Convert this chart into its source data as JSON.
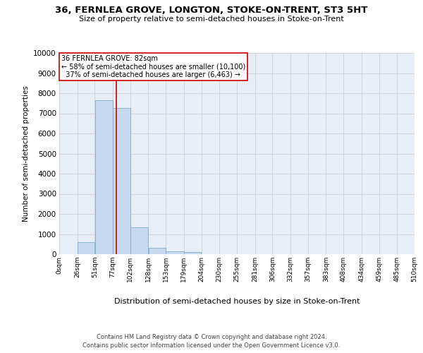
{
  "title": "36, FERNLEA GROVE, LONGTON, STOKE-ON-TRENT, ST3 5HT",
  "subtitle": "Size of property relative to semi-detached houses in Stoke-on-Trent",
  "xlabel": "Distribution of semi-detached houses by size in Stoke-on-Trent",
  "ylabel": "Number of semi-detached properties",
  "footnote1": "Contains HM Land Registry data © Crown copyright and database right 2024.",
  "footnote2": "Contains public sector information licensed under the Open Government Licence v3.0.",
  "bin_edges": [
    0,
    26,
    51,
    77,
    102,
    128,
    153,
    179,
    204,
    230,
    255,
    281,
    306,
    332,
    357,
    383,
    408,
    434,
    459,
    485,
    510
  ],
  "bin_labels": [
    "0sqm",
    "26sqm",
    "51sqm",
    "77sqm",
    "102sqm",
    "128sqm",
    "153sqm",
    "179sqm",
    "204sqm",
    "230sqm",
    "255sqm",
    "281sqm",
    "306sqm",
    "332sqm",
    "357sqm",
    "383sqm",
    "408sqm",
    "434sqm",
    "459sqm",
    "485sqm",
    "510sqm"
  ],
  "counts": [
    0,
    600,
    7650,
    7250,
    1350,
    320,
    130,
    90,
    0,
    0,
    0,
    0,
    0,
    0,
    0,
    0,
    0,
    0,
    0,
    0
  ],
  "bar_color": "#c6d9f0",
  "bar_edge_color": "#7faacc",
  "property_line_x": 82,
  "red_line_color": "#cc0000",
  "annotation_title": "36 FERNLEA GROVE: 82sqm",
  "annotation_line1": "← 58% of semi-detached houses are smaller (10,100)",
  "annotation_line2": "  37% of semi-detached houses are larger (6,463) →",
  "annotation_box_color": "#ffffff",
  "annotation_box_edge": "#cc0000",
  "ylim": [
    0,
    10000
  ],
  "yticks": [
    0,
    1000,
    2000,
    3000,
    4000,
    5000,
    6000,
    7000,
    8000,
    9000,
    10000
  ],
  "background_color": "#ffffff",
  "grid_color": "#d0d0d0",
  "ax_bg_color": "#e8eef8"
}
